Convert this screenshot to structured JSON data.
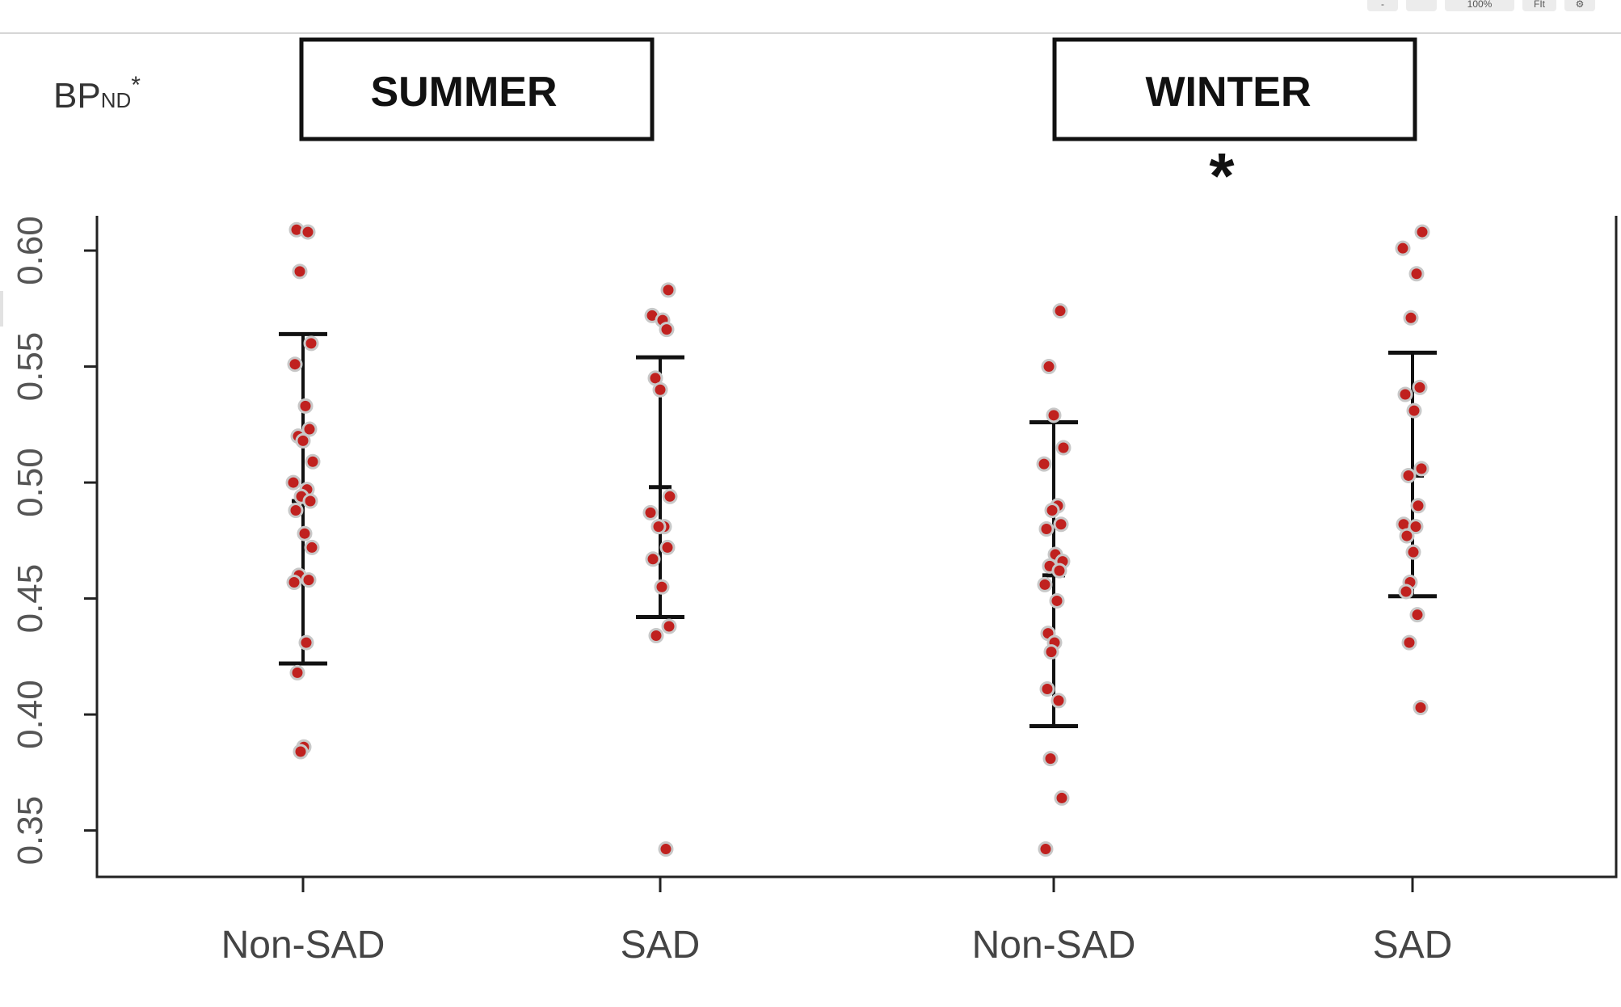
{
  "toolbar": {
    "buttons": [
      {
        "name": "zoom-out-button",
        "label": "-"
      },
      {
        "name": "zoom-reset-button",
        "label": ""
      },
      {
        "name": "zoom-level-button",
        "label": "100%"
      },
      {
        "name": "fit-button",
        "label": "FIt"
      },
      {
        "name": "settings-button",
        "label": "⚙"
      }
    ]
  },
  "chart_data": {
    "type": "scatter",
    "ylabel": "BPND*",
    "ylabel_main": "BP",
    "ylabel_sub": "ND",
    "ylabel_sup": "*",
    "ylim": [
      0.33,
      0.615
    ],
    "yticks": [
      0.35,
      0.4,
      0.45,
      0.5,
      0.55,
      0.6
    ],
    "ytick_labels": [
      "0.35",
      "0.40",
      "0.45",
      "0.50",
      "0.55",
      "0.60"
    ],
    "grid": false,
    "season_labels": [
      "SUMMER",
      "WINTER"
    ],
    "significance_marker": "*",
    "categories": [
      "Non-SAD",
      "SAD",
      "Non-SAD",
      "SAD"
    ],
    "point_color": "#c0211f",
    "series": [
      {
        "season": "SUMMER",
        "group": "Non-SAD",
        "mean": 0.492,
        "sd_upper": 0.564,
        "sd_lower": 0.422,
        "values": [
          0.609,
          0.608,
          0.591,
          0.56,
          0.551,
          0.533,
          0.523,
          0.52,
          0.518,
          0.509,
          0.5,
          0.497,
          0.494,
          0.492,
          0.488,
          0.478,
          0.472,
          0.46,
          0.458,
          0.457,
          0.431,
          0.418,
          0.386,
          0.384
        ]
      },
      {
        "season": "SUMMER",
        "group": "SAD",
        "mean": 0.498,
        "sd_upper": 0.554,
        "sd_lower": 0.442,
        "values": [
          0.583,
          0.572,
          0.57,
          0.566,
          0.545,
          0.54,
          0.494,
          0.487,
          0.481,
          0.481,
          0.472,
          0.467,
          0.455,
          0.438,
          0.434,
          0.342
        ]
      },
      {
        "season": "WINTER",
        "group": "Non-SAD",
        "mean": 0.46,
        "sd_upper": 0.526,
        "sd_lower": 0.395,
        "values": [
          0.574,
          0.55,
          0.529,
          0.515,
          0.508,
          0.49,
          0.488,
          0.482,
          0.48,
          0.469,
          0.466,
          0.464,
          0.462,
          0.456,
          0.449,
          0.435,
          0.431,
          0.427,
          0.411,
          0.406,
          0.381,
          0.364,
          0.342
        ]
      },
      {
        "season": "WINTER",
        "group": "SAD",
        "mean": 0.503,
        "sd_upper": 0.556,
        "sd_lower": 0.451,
        "values": [
          0.608,
          0.601,
          0.59,
          0.571,
          0.541,
          0.538,
          0.531,
          0.506,
          0.503,
          0.49,
          0.482,
          0.481,
          0.477,
          0.47,
          0.457,
          0.453,
          0.443,
          0.431,
          0.403
        ]
      }
    ]
  }
}
